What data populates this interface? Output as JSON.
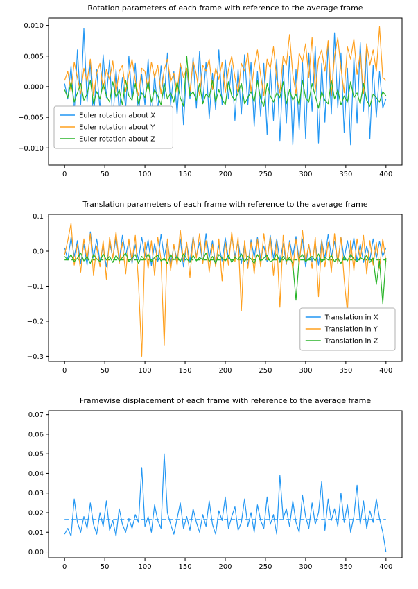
{
  "figure": {
    "background": "#ffffff"
  },
  "colors": {
    "blue": "#2196f3",
    "orange": "#ffa01e",
    "green": "#28b428",
    "axis": "#000000",
    "legend_border": "#b0b0b0",
    "legend_bg": "#ffffff"
  },
  "chart_data": [
    {
      "id": "rotation",
      "type": "line",
      "title": "Rotation parameters of each frame with reference to the average frame",
      "xlim": [
        -20,
        420
      ],
      "ylim": [
        -0.0128,
        0.0112
      ],
      "x_max": 400,
      "xticks": [
        0,
        50,
        100,
        150,
        200,
        250,
        300,
        350,
        400
      ],
      "xtick_labels": [
        "0",
        "50",
        "100",
        "150",
        "200",
        "250",
        "300",
        "350",
        "400"
      ],
      "yticks": [
        0.01,
        0.005,
        0.0,
        -0.005,
        -0.01
      ],
      "ytick_labels": [
        "0.010",
        "0.005",
        "0.000",
        "−0.005",
        "−0.010"
      ],
      "legend": {
        "position": "lower-left"
      },
      "series": [
        {
          "name": "Euler rotation about X",
          "color": "blue",
          "scale": 0.0001,
          "values": [
            5,
            -20,
            34,
            -45,
            60,
            -30,
            95,
            -25,
            40,
            -55,
            28,
            -38,
            52,
            -18,
            44,
            -60,
            28,
            -42,
            15,
            -35,
            50,
            -22,
            38,
            -48,
            20,
            -30,
            45,
            -58,
            20,
            -40,
            34,
            -20,
            55,
            -30,
            25,
            -45,
            38,
            -62,
            30,
            -20,
            48,
            -35,
            58,
            -25,
            40,
            -52,
            22,
            -38,
            60,
            -30,
            44,
            -20,
            35,
            -55,
            28,
            -45,
            52,
            -30,
            40,
            -65,
            25,
            -48,
            38,
            -78,
            30,
            -55,
            45,
            -88,
            35,
            -60,
            50,
            -95,
            28,
            -70,
            42,
            -85,
            55,
            -40,
            65,
            -92,
            38,
            -58,
            70,
            -45,
            88,
            -35,
            55,
            -75,
            30,
            -95,
            48,
            -60,
            72,
            -40,
            58,
            -85,
            35,
            -50,
            25,
            -35,
            -20
          ]
        },
        {
          "name": "Euler rotation about Y",
          "color": "orange",
          "scale": 0.0001,
          "values": [
            10,
            25,
            -8,
            40,
            15,
            -12,
            30,
            8,
            45,
            -15,
            22,
            38,
            -5,
            28,
            12,
            42,
            -10,
            25,
            35,
            -8,
            20,
            45,
            10,
            -15,
            30,
            25,
            -5,
            40,
            15,
            35,
            -12,
            28,
            45,
            8,
            22,
            -10,
            38,
            15,
            30,
            -8,
            42,
            20,
            -15,
            35,
            25,
            45,
            -5,
            30,
            12,
            40,
            -10,
            28,
            50,
            15,
            -12,
            38,
            25,
            55,
            -8,
            32,
            60,
            18,
            -15,
            45,
            30,
            65,
            12,
            -10,
            50,
            35,
            85,
            20,
            -12,
            55,
            40,
            70,
            15,
            80,
            -8,
            45,
            60,
            25,
            75,
            -15,
            50,
            80,
            30,
            -10,
            65,
            45,
            78,
            20,
            55,
            -12,
            70,
            35,
            60,
            25,
            98,
            15,
            10
          ]
        },
        {
          "name": "Euler rotation about Z",
          "color": "green",
          "scale": 0.0001,
          "values": [
            -5,
            -18,
            8,
            -25,
            -10,
            5,
            -22,
            -12,
            10,
            -28,
            -8,
            -20,
            5,
            -15,
            -25,
            8,
            -18,
            -5,
            -30,
            10,
            -15,
            -22,
            5,
            -28,
            -10,
            -18,
            8,
            -25,
            -5,
            -15,
            -30,
            5,
            -20,
            -10,
            -25,
            8,
            -18,
            -32,
            50,
            -15,
            -8,
            -22,
            5,
            -28,
            -12,
            -18,
            10,
            -25,
            -5,
            -20,
            -30,
            8,
            -15,
            -22,
            -10,
            5,
            -28,
            -18,
            -8,
            -25,
            10,
            -20,
            -32,
            5,
            -15,
            -25,
            -10,
            -18,
            8,
            -28,
            -5,
            -22,
            -12,
            -30,
            10,
            -18,
            -25,
            5,
            -15,
            -35,
            -8,
            -22,
            -28,
            10,
            -20,
            -5,
            -30,
            -15,
            -25,
            8,
            -18,
            -10,
            -28,
            5,
            -22,
            -32,
            -12,
            -18,
            -25,
            -8,
            -15
          ]
        }
      ]
    },
    {
      "id": "translation",
      "type": "line",
      "title": "Translation parameters of each frame with reference to the average frame",
      "xlim": [
        -20,
        420
      ],
      "ylim": [
        -0.315,
        0.105
      ],
      "x_max": 400,
      "xticks": [
        0,
        50,
        100,
        150,
        200,
        250,
        300,
        350,
        400
      ],
      "xtick_labels": [
        "0",
        "50",
        "100",
        "150",
        "200",
        "250",
        "300",
        "350",
        "400"
      ],
      "yticks": [
        0.1,
        0.0,
        -0.1,
        -0.2,
        -0.3
      ],
      "ytick_labels": [
        "0.1",
        "0.0",
        "−0.1",
        "−0.2",
        "−0.3"
      ],
      "legend": {
        "position": "lower-right"
      },
      "mean_line": {
        "value": -0.025,
        "color": "green"
      },
      "series": [
        {
          "name": "Translation in X",
          "color": "blue",
          "scale": 0.001,
          "values": [
            10,
            -25,
            40,
            -15,
            30,
            -35,
            20,
            -40,
            55,
            -20,
            35,
            -30,
            15,
            -45,
            25,
            -18,
            38,
            -28,
            45,
            -12,
            30,
            -35,
            18,
            -25,
            40,
            -15,
            32,
            -42,
            22,
            -30,
            48,
            -18,
            28,
            -38,
            15,
            -25,
            35,
            -45,
            20,
            -30,
            42,
            -15,
            25,
            -35,
            50,
            -20,
            30,
            -40,
            18,
            -28,
            38,
            -22,
            45,
            -15,
            28,
            -35,
            20,
            -42,
            32,
            -18,
            40,
            -25,
            15,
            -30,
            45,
            -20,
            35,
            -28,
            22,
            -38,
            30,
            -15,
            42,
            -25,
            35,
            -45,
            18,
            -30,
            25,
            -40,
            32,
            -20,
            48,
            -15,
            28,
            -35,
            40,
            -22,
            30,
            -18,
            38,
            -28,
            20,
            -32,
            15,
            -25,
            35,
            -20,
            28,
            -15,
            10
          ]
        },
        {
          "name": "Translation in Y",
          "color": "orange",
          "scale": 0.001,
          "values": [
            -10,
            30,
            80,
            -40,
            20,
            -60,
            35,
            -25,
            50,
            -70,
            15,
            -45,
            30,
            -80,
            40,
            -20,
            55,
            -35,
            25,
            -65,
            35,
            -30,
            45,
            -90,
            -300,
            25,
            -50,
            30,
            -70,
            40,
            -25,
            -270,
            35,
            -55,
            20,
            -40,
            60,
            -30,
            25,
            -75,
            40,
            -20,
            50,
            -35,
            30,
            -60,
            20,
            -45,
            35,
            -85,
            25,
            -40,
            55,
            -30,
            40,
            -170,
            30,
            -50,
            25,
            -65,
            35,
            -45,
            50,
            -25,
            40,
            -70,
            30,
            -160,
            45,
            -35,
            25,
            -55,
            35,
            -40,
            60,
            -30,
            20,
            -50,
            40,
            -130,
            30,
            -45,
            25,
            -60,
            50,
            -35,
            40,
            -80,
            -175,
            30,
            -55,
            35,
            -25,
            45,
            -65,
            30,
            -40,
            25,
            -50,
            35,
            -30
          ]
        },
        {
          "name": "Translation in Z",
          "color": "green",
          "scale": 0.001,
          "values": [
            -15,
            -25,
            -10,
            -30,
            -20,
            -5,
            -28,
            -15,
            -35,
            -10,
            -22,
            -30,
            -8,
            -25,
            -15,
            -32,
            -12,
            -28,
            -18,
            -5,
            -30,
            -20,
            -10,
            -35,
            -15,
            -25,
            -8,
            -30,
            -18,
            -12,
            -28,
            -20,
            -35,
            -10,
            -25,
            -15,
            -30,
            -8,
            -22,
            -32,
            -12,
            -28,
            -18,
            -25,
            -5,
            -30,
            -15,
            -35,
            -10,
            -20,
            -28,
            -12,
            -32,
            -18,
            -25,
            -8,
            -30,
            -15,
            -22,
            -35,
            -10,
            -28,
            -20,
            -12,
            -30,
            -25,
            -8,
            -32,
            -15,
            -28,
            -18,
            -35,
            -140,
            -20,
            -10,
            -30,
            -22,
            -15,
            -28,
            -8,
            -32,
            -18,
            -25,
            -12,
            -30,
            -20,
            -35,
            -15,
            -28,
            -10,
            -22,
            -30,
            -18,
            -25,
            -12,
            -32,
            -20,
            -95,
            -28,
            -150,
            -20
          ]
        }
      ]
    },
    {
      "id": "fd",
      "type": "line",
      "title": "Framewise displacement of each frame with reference to the average frame",
      "xlim": [
        -20,
        420
      ],
      "ylim": [
        -0.003,
        0.072
      ],
      "x_max": 400,
      "xticks": [
        0,
        50,
        100,
        150,
        200,
        250,
        300,
        350,
        400
      ],
      "xtick_labels": [
        "0",
        "50",
        "100",
        "150",
        "200",
        "250",
        "300",
        "350",
        "400"
      ],
      "yticks": [
        0.0,
        0.01,
        0.02,
        0.03,
        0.04,
        0.05,
        0.06,
        0.07
      ],
      "ytick_labels": [
        "0.00",
        "0.01",
        "0.02",
        "0.03",
        "0.04",
        "0.05",
        "0.06",
        "0.07"
      ],
      "mean_line": {
        "value": 0.0165,
        "color": "blue"
      },
      "series": [
        {
          "name": "Framewise displacement",
          "color": "blue",
          "scale": 0.001,
          "values": [
            9,
            12,
            8,
            27,
            15,
            10,
            18,
            12,
            25,
            14,
            9,
            20,
            13,
            26,
            11,
            16,
            8,
            22,
            14,
            10,
            17,
            12,
            19,
            15,
            43,
            13,
            18,
            10,
            24,
            16,
            12,
            50,
            20,
            14,
            9,
            17,
            25,
            12,
            18,
            11,
            22,
            15,
            10,
            19,
            13,
            26,
            14,
            9,
            21,
            16,
            28,
            12,
            18,
            23,
            11,
            15,
            27,
            13,
            20,
            10,
            24,
            16,
            12,
            28,
            14,
            19,
            9,
            39,
            17,
            22,
            13,
            26,
            15,
            10,
            29,
            18,
            12,
            25,
            14,
            20,
            36,
            11,
            27,
            16,
            22,
            13,
            30,
            15,
            24,
            10,
            18,
            34,
            14,
            26,
            12,
            21,
            15,
            27,
            17,
            10,
            0
          ]
        }
      ]
    }
  ]
}
